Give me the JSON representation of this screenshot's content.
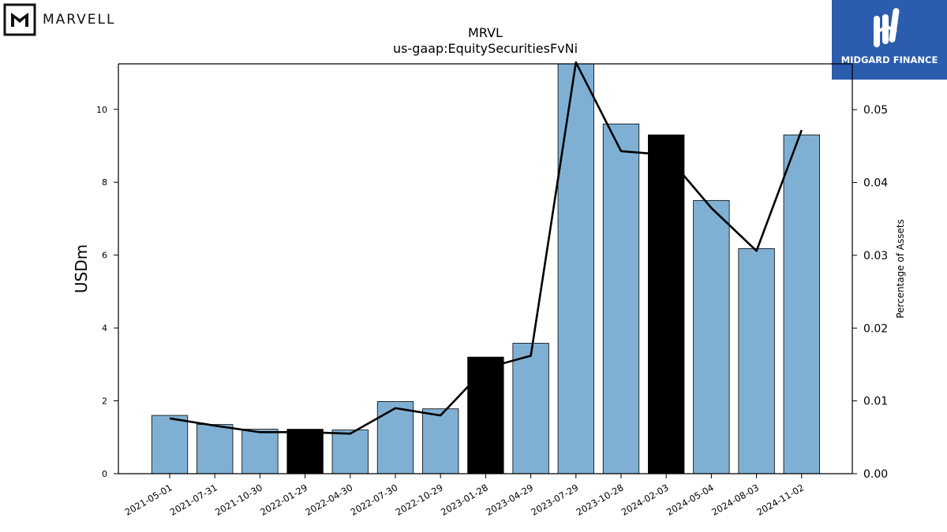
{
  "header": {
    "left_logo_text": "MARVELL",
    "right_logo_text": "MIDGARD FINANCE"
  },
  "colors": {
    "bar_default": "#7fb0d4",
    "bar_highlight": "#000000",
    "line": "#000000",
    "logo_right_bg": "#2b5cad"
  },
  "chart_data": {
    "type": "bar",
    "title": "MRVL",
    "subtitle": "us-gaap:EquitySecuritiesFvNi",
    "ylabel": "USDm",
    "y2label": "Percentage of Assets",
    "categories": [
      "2021-05-01",
      "2021-07-31",
      "2021-10-30",
      "2022-01-29",
      "2022-04-30",
      "2022-07-30",
      "2022-10-29",
      "2023-01-28",
      "2023-04-29",
      "2023-07-29",
      "2023-10-28",
      "2024-02-03",
      "2024-05-04",
      "2024-08-03",
      "2024-11-02"
    ],
    "series": [
      {
        "kind": "bar",
        "axis": "left",
        "values": [
          1.6,
          1.35,
          1.22,
          1.22,
          1.2,
          1.98,
          1.78,
          3.2,
          3.58,
          11.3,
          9.6,
          9.3,
          7.5,
          6.18,
          9.3
        ]
      },
      {
        "kind": "line",
        "axis": "right",
        "values": [
          0.0076,
          0.0066,
          0.0057,
          0.0057,
          0.0055,
          0.009,
          0.008,
          0.0145,
          0.0162,
          0.0565,
          0.0443,
          0.0438,
          0.0365,
          0.0306,
          0.0472
        ]
      }
    ],
    "highlight_categories": [
      "2022-01-29",
      "2023-01-28",
      "2024-02-03"
    ],
    "ylim": [
      0,
      11.25
    ],
    "y2lim": [
      0,
      0.0563
    ],
    "yticks": [
      0,
      2,
      4,
      6,
      8,
      10
    ],
    "y2ticks": [
      "0.00",
      "0.01",
      "0.02",
      "0.03",
      "0.04",
      "0.05"
    ],
    "grid": false,
    "legend": "none"
  }
}
